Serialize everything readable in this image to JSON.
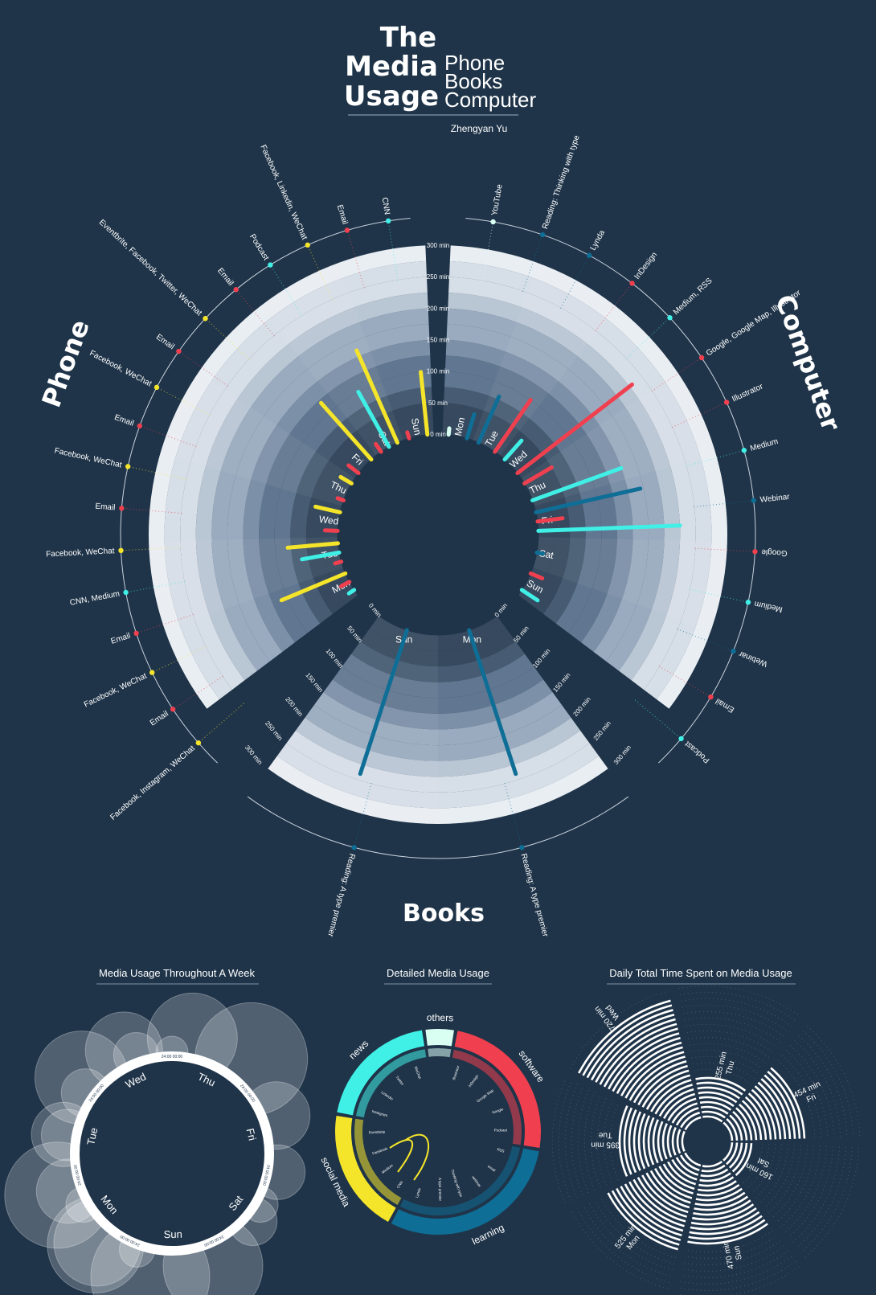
{
  "header": {
    "title_lines": [
      "The",
      "Media",
      "Usage"
    ],
    "subtitle_lines": [
      "Phone",
      "Books",
      "Computer"
    ],
    "author": "Zhengyan Yu"
  },
  "colors": {
    "background": "#1f3449",
    "red": "#f0404f",
    "cyan": "#40f0e6",
    "yellow": "#f5e52a",
    "blue": "#0f6e96",
    "white_accent": "#d8fff2"
  },
  "main_radial": {
    "ring_labels": [
      "0 min",
      "50 min",
      "100 min",
      "150 min",
      "200 min",
      "250 min",
      "300 min"
    ],
    "sections": {
      "phone": {
        "label": "Phone",
        "days": [
          "Mon",
          "Tue",
          "Wed",
          "Thu",
          "Fri",
          "Sat",
          "Sun"
        ],
        "bars": [
          {
            "day": "Mon",
            "color": "cyan",
            "minutes": 10
          },
          {
            "day": "Mon",
            "color": "red",
            "minutes": 15
          },
          {
            "day": "Mon",
            "color": "yellow",
            "minutes": 110
          },
          {
            "day": "Tue",
            "color": "red",
            "minutes": 10
          },
          {
            "day": "Tue",
            "color": "cyan",
            "minutes": 60
          },
          {
            "day": "Tue",
            "color": "yellow",
            "minutes": 80
          },
          {
            "day": "Wed",
            "color": "red",
            "minutes": 20
          },
          {
            "day": "Wed",
            "color": "yellow",
            "minutes": 40
          },
          {
            "day": "Thu",
            "color": "red",
            "minutes": 10
          },
          {
            "day": "Thu",
            "color": "yellow",
            "minutes": 20
          },
          {
            "day": "Fri",
            "color": "red",
            "minutes": 20
          },
          {
            "day": "Fri",
            "color": "yellow",
            "minutes": 120
          },
          {
            "day": "Sat",
            "color": "red",
            "minutes": 15
          },
          {
            "day": "Sat",
            "color": "cyan",
            "minutes": 100
          },
          {
            "day": "Sat",
            "color": "yellow",
            "minutes": 160
          },
          {
            "day": "Sun",
            "color": "red",
            "minutes": 10
          },
          {
            "day": "Sun",
            "color": "yellow",
            "minutes": 100
          }
        ]
      },
      "computer": {
        "label": "Computer",
        "days": [
          "Mon",
          "Tue",
          "Wed",
          "Thu",
          "Fri",
          "Sat",
          "Sun"
        ],
        "bars": [
          {
            "day": "Mon",
            "color": "white_accent",
            "minutes": 10
          },
          {
            "day": "Mon",
            "color": "blue",
            "minutes": 40
          },
          {
            "day": "Tue",
            "color": "blue",
            "minutes": 80
          },
          {
            "day": "Tue",
            "color": "red",
            "minutes": 100
          },
          {
            "day": "Wed",
            "color": "cyan",
            "minutes": 40
          },
          {
            "day": "Wed",
            "color": "red",
            "minutes": 230
          },
          {
            "day": "Thu",
            "color": "red",
            "minutes": 50
          },
          {
            "day": "Thu",
            "color": "cyan",
            "minutes": 150
          },
          {
            "day": "Fri",
            "color": "blue",
            "minutes": 170
          },
          {
            "day": "Fri",
            "color": "red",
            "minutes": 40
          },
          {
            "day": "Fri",
            "color": "cyan",
            "minutes": 225
          },
          {
            "day": "Sat",
            "color": "blue",
            "minutes": 10
          },
          {
            "day": "Sun",
            "color": "red",
            "minutes": 20
          },
          {
            "day": "Sun",
            "color": "cyan",
            "minutes": 30
          }
        ]
      },
      "books": {
        "label": "Books",
        "days": [
          "Mon",
          "Sun"
        ],
        "bars": [
          {
            "day": "Mon",
            "color": "blue",
            "minutes": 240
          },
          {
            "day": "Sun",
            "color": "blue",
            "minutes": 240
          }
        ]
      }
    },
    "annotations": {
      "phone": [
        {
          "text": "CNN",
          "color": "cyan"
        },
        {
          "text": "Email",
          "color": "red"
        },
        {
          "text": "Facebook, Linkedin, WeChat",
          "color": "yellow"
        },
        {
          "text": "Podcast",
          "color": "cyan"
        },
        {
          "text": "Email",
          "color": "red"
        },
        {
          "text": "Eventbrite, Facebook, Twitter, WeChat",
          "color": "yellow"
        },
        {
          "text": "Email",
          "color": "red"
        },
        {
          "text": "Facebook, WeChat",
          "color": "yellow"
        },
        {
          "text": "Email",
          "color": "red"
        },
        {
          "text": "Facebook, WeChat",
          "color": "yellow"
        },
        {
          "text": "Email",
          "color": "red"
        },
        {
          "text": "Facebook, WeChat",
          "color": "yellow"
        },
        {
          "text": "CNN, Medium",
          "color": "cyan"
        },
        {
          "text": "Email",
          "color": "red"
        },
        {
          "text": "Facebook, WeChat",
          "color": "yellow"
        },
        {
          "text": "Email",
          "color": "red"
        },
        {
          "text": "Facebook, Instagram, WeChat",
          "color": "yellow"
        }
      ],
      "computer": [
        {
          "text": "YouTube",
          "color": "white_accent"
        },
        {
          "text": "Reading: Thinking with type",
          "color": "blue"
        },
        {
          "text": "Lynda",
          "color": "blue"
        },
        {
          "text": "InDesign",
          "color": "red"
        },
        {
          "text": "Medium, RSS",
          "color": "cyan"
        },
        {
          "text": "Google, Google Map, Illustrator",
          "color": "red"
        },
        {
          "text": "Illustrator",
          "color": "red"
        },
        {
          "text": "Medium",
          "color": "cyan"
        },
        {
          "text": "Webinar",
          "color": "blue"
        },
        {
          "text": "Google",
          "color": "red"
        },
        {
          "text": "Medium",
          "color": "cyan"
        },
        {
          "text": "Webinar",
          "color": "blue"
        },
        {
          "text": "Email",
          "color": "red"
        },
        {
          "text": "Podcast",
          "color": "cyan"
        }
      ],
      "books": [
        {
          "text": "Reading: A type premier",
          "color": "blue"
        },
        {
          "text": "Reading: A type premier",
          "color": "blue"
        }
      ]
    }
  },
  "chart_data": [
    {
      "type": "bar",
      "subtype": "radial",
      "section": "Phone",
      "unit": "min",
      "categories": [
        "Mon",
        "Tue",
        "Wed",
        "Thu",
        "Fri",
        "Sat",
        "Sun"
      ],
      "ylim": [
        0,
        300
      ],
      "series": [
        {
          "color": "#f0404f",
          "values": [
            15,
            10,
            20,
            10,
            20,
            15,
            10
          ]
        },
        {
          "color": "#40f0e6",
          "values": [
            10,
            60,
            0,
            0,
            0,
            100,
            0
          ]
        },
        {
          "color": "#f5e52a",
          "values": [
            110,
            80,
            40,
            20,
            120,
            160,
            100
          ]
        }
      ]
    },
    {
      "type": "bar",
      "subtype": "radial",
      "section": "Computer",
      "unit": "min",
      "categories": [
        "Mon",
        "Tue",
        "Wed",
        "Thu",
        "Fri",
        "Sat",
        "Sun"
      ],
      "ylim": [
        0,
        300
      ],
      "series": [
        {
          "color": "#f0404f",
          "values": [
            0,
            100,
            230,
            50,
            40,
            0,
            20
          ]
        },
        {
          "color": "#40f0e6",
          "values": [
            0,
            0,
            40,
            150,
            225,
            0,
            30
          ]
        },
        {
          "color": "#0f6e96",
          "values": [
            40,
            80,
            0,
            0,
            170,
            10,
            0
          ]
        },
        {
          "color": "#d8fff2",
          "values": [
            10,
            0,
            0,
            0,
            0,
            0,
            0
          ]
        }
      ]
    },
    {
      "type": "bar",
      "subtype": "radial",
      "section": "Books",
      "unit": "min",
      "categories": [
        "Mon",
        "Sun"
      ],
      "ylim": [
        0,
        300
      ],
      "series": [
        {
          "color": "#0f6e96",
          "values": [
            240,
            240
          ]
        }
      ]
    },
    {
      "type": "other",
      "title": "Media Usage Throughout A Week",
      "day_labels": [
        "Thu",
        "Fri",
        "Sat",
        "Sun",
        "Mon",
        "Tue",
        "Wed"
      ],
      "time_labels": [
        "24:00",
        "00:00"
      ]
    },
    {
      "type": "pie",
      "subtype": "donut",
      "title": "Detailed Media Usage",
      "categories": [
        "software",
        "learning",
        "social media",
        "news",
        "others"
      ],
      "values": [
        25,
        30,
        20,
        20,
        5
      ],
      "colors": [
        "#f0404f",
        "#0f6e96",
        "#f5e52a",
        "#40f0e6",
        "#d8fff2"
      ],
      "inner_labels": [
        "Illustrator",
        "InDesign",
        "Google Map",
        "Google",
        "Podcast",
        "RSS",
        "email",
        "webinar",
        "Thinking with type",
        "A type premier",
        "Lynda",
        "CNN",
        "Medium",
        "Facebook",
        "Eventbrite",
        "Instagram",
        "Linkedin",
        "Twitter",
        "WeChat"
      ]
    },
    {
      "type": "bar",
      "subtype": "radial",
      "title": "Daily Total Time Spent on Media Usage",
      "unit": "min",
      "categories": [
        "Wed",
        "Thu",
        "Fri",
        "Sat",
        "Sun",
        "Mon",
        "Tue"
      ],
      "values": [
        720,
        255,
        454,
        160,
        470,
        525,
        395
      ],
      "value_labels": [
        "720 min",
        "255 min",
        "454 min",
        "160 min",
        "470 min",
        "525 min",
        "395 min"
      ]
    }
  ]
}
